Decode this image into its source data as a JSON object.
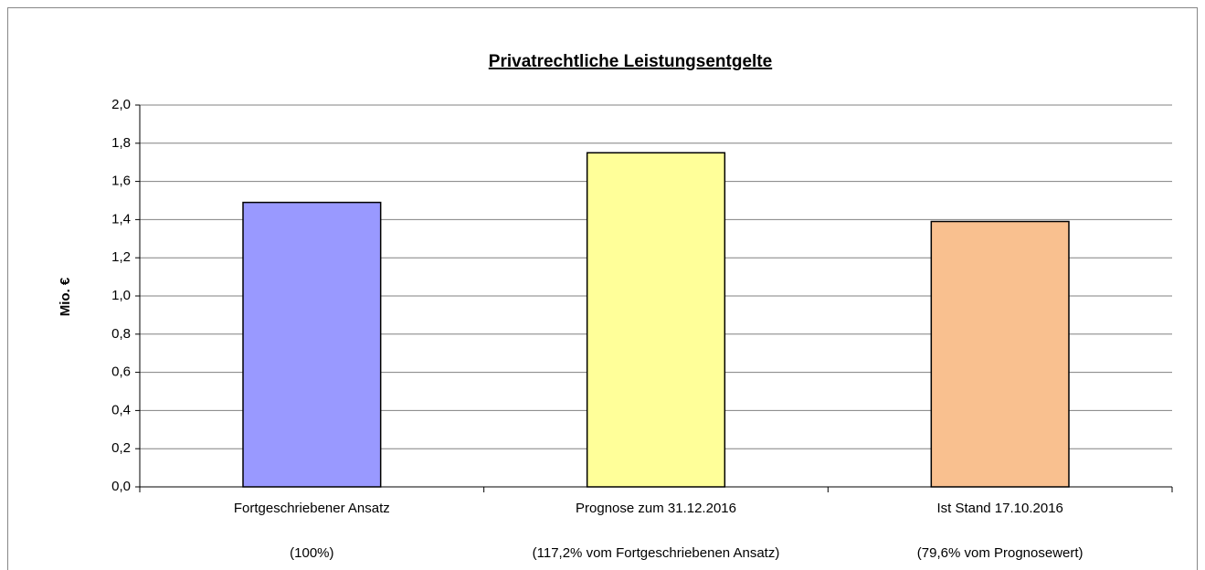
{
  "chart_data": {
    "type": "bar",
    "title": "Privatrechtliche Leistungsentgelte",
    "y_label": "Mio. €",
    "categories": [
      "Fortgeschriebener Ansatz",
      "Prognose zum 31.12.2016",
      "Ist Stand 17.10.2016"
    ],
    "category_notes": [
      "(100%)",
      "(117,2% vom Fortgeschriebenen Ansatz)",
      "(79,6% vom Prognosewert)"
    ],
    "values": [
      1.49,
      1.75,
      1.39
    ],
    "colors": [
      "#9999ff",
      "#ffff99",
      "#f9c08f"
    ],
    "ylim": [
      0,
      2
    ],
    "yticks": [
      {
        "value": 0,
        "label": "0,0"
      },
      {
        "value": 0.2,
        "label": "0,2"
      },
      {
        "value": 0.4,
        "label": "0,4"
      },
      {
        "value": 0.6,
        "label": "0,6"
      },
      {
        "value": 0.8,
        "label": "0,8"
      },
      {
        "value": 1,
        "label": "1,0"
      },
      {
        "value": 1.2,
        "label": "1,2"
      },
      {
        "value": 1.4,
        "label": "1,4"
      },
      {
        "value": 1.6,
        "label": "1,6"
      },
      {
        "value": 1.8,
        "label": "1,8"
      },
      {
        "value": 2,
        "label": "2,0"
      }
    ],
    "grid": true
  }
}
